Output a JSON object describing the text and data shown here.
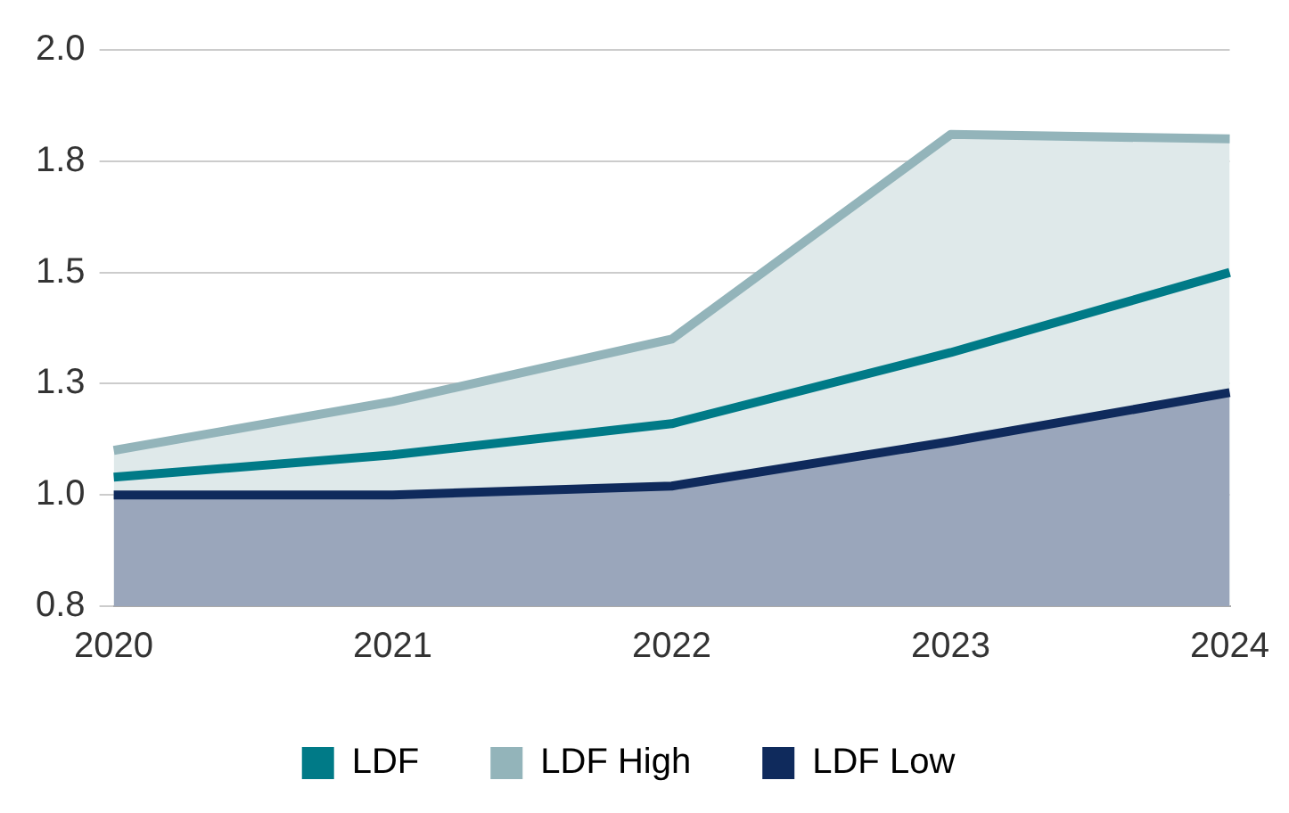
{
  "chart_data": {
    "type": "line",
    "categories": [
      "2020",
      "2021",
      "2022",
      "2023",
      "2024"
    ],
    "series": [
      {
        "name": "LDF",
        "color": "#007a87",
        "values": [
          1.04,
          1.09,
          1.16,
          1.32,
          1.5
        ]
      },
      {
        "name": "LDF High",
        "type": "area",
        "color": "#93b4ba",
        "values": [
          1.1,
          1.21,
          1.35,
          1.81,
          1.8
        ]
      },
      {
        "name": "LDF Low",
        "type": "area",
        "color": "#0f2a5c",
        "values": [
          1.0,
          1.0,
          1.02,
          1.12,
          1.23
        ]
      }
    ],
    "ylim": [
      0.75,
      2.0
    ],
    "yticks": [
      {
        "value": 0.75,
        "label": "0.8"
      },
      {
        "value": 1.0,
        "label": "1.0"
      },
      {
        "value": 1.25,
        "label": "1.3"
      },
      {
        "value": 1.5,
        "label": "1.5"
      },
      {
        "value": 1.75,
        "label": "1.8"
      },
      {
        "value": 2.0,
        "label": "2.0"
      }
    ],
    "grid": "y",
    "legend": "bottom",
    "marker": "none",
    "line_style": "solid"
  }
}
